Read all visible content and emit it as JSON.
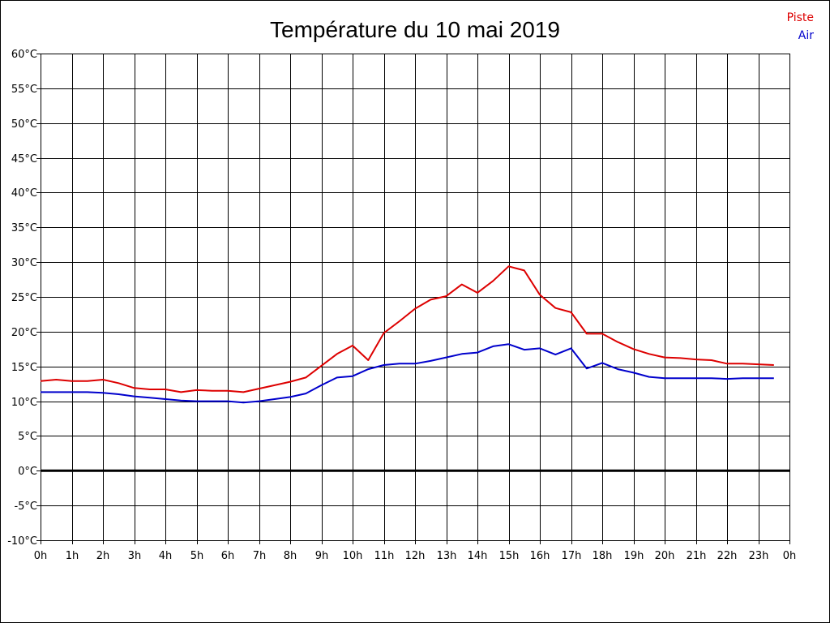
{
  "chart_data": {
    "type": "line",
    "title": "Température du 10 mai 2019",
    "xlabel": "",
    "ylabel": "",
    "x_tick_labels": [
      "0h",
      "1h",
      "2h",
      "3h",
      "4h",
      "5h",
      "6h",
      "7h",
      "8h",
      "9h",
      "10h",
      "11h",
      "12h",
      "13h",
      "14h",
      "15h",
      "16h",
      "17h",
      "18h",
      "19h",
      "20h",
      "21h",
      "22h",
      "23h",
      "0h"
    ],
    "y_tick_labels": [
      "60°C",
      "55°C",
      "50°C",
      "45°C",
      "40°C",
      "35°C",
      "30°C",
      "25°C",
      "20°C",
      "15°C",
      "10°C",
      "5°C",
      "0°C",
      "-5°C",
      "-10°C"
    ],
    "xlim": [
      0,
      24
    ],
    "ylim": [
      -10,
      60
    ],
    "grid": true,
    "legend_position": "top-right",
    "zero_line": true,
    "series": [
      {
        "name": "Piste",
        "color": "#dd0000",
        "x": [
          0,
          0.5,
          1,
          1.5,
          2,
          2.5,
          3,
          3.5,
          4,
          4.5,
          5,
          5.5,
          6,
          6.5,
          7,
          7.5,
          8,
          8.5,
          9,
          9.5,
          10,
          10.5,
          11,
          11.5,
          12,
          12.5,
          13,
          13.5,
          14,
          14.5,
          15,
          15.5,
          16,
          16.5,
          17,
          17.5,
          18,
          18.5,
          19,
          19.5,
          20,
          20.5,
          21,
          21.5,
          22,
          22.5,
          23,
          23.5
        ],
        "values": [
          12.9,
          13.1,
          12.9,
          12.9,
          13.1,
          12.6,
          11.9,
          11.7,
          11.7,
          11.3,
          11.6,
          11.5,
          11.5,
          11.3,
          11.8,
          12.3,
          12.8,
          13.4,
          15.1,
          16.8,
          18.0,
          15.9,
          19.8,
          21.5,
          23.3,
          24.6,
          25.1,
          26.8,
          25.6,
          27.3,
          29.4,
          28.8,
          25.3,
          23.4,
          22.8,
          19.7,
          19.7,
          18.5,
          17.5,
          16.8,
          16.3,
          16.2,
          16.0,
          15.9,
          15.4,
          15.4,
          15.3,
          15.2
        ]
      },
      {
        "name": "Air",
        "color": "#0000cc",
        "x": [
          0,
          0.5,
          1,
          1.5,
          2,
          2.5,
          3,
          3.5,
          4,
          4.5,
          5,
          5.5,
          6,
          6.5,
          7,
          7.5,
          8,
          8.5,
          9,
          9.5,
          10,
          10.5,
          11,
          11.5,
          12,
          12.5,
          13,
          13.5,
          14,
          14.5,
          15,
          15.5,
          16,
          16.5,
          17,
          17.5,
          18,
          18.5,
          19,
          19.5,
          20,
          20.5,
          21,
          21.5,
          22,
          22.5,
          23,
          23.5
        ],
        "values": [
          11.3,
          11.3,
          11.3,
          11.3,
          11.2,
          11.0,
          10.7,
          10.5,
          10.3,
          10.1,
          10.0,
          10.0,
          10.0,
          9.8,
          10.0,
          10.3,
          10.6,
          11.1,
          12.3,
          13.4,
          13.6,
          14.6,
          15.2,
          15.4,
          15.4,
          15.8,
          16.3,
          16.8,
          17.0,
          17.9,
          18.2,
          17.4,
          17.6,
          16.7,
          17.6,
          14.7,
          15.5,
          14.6,
          14.1,
          13.5,
          13.3,
          13.3,
          13.3,
          13.3,
          13.2,
          13.3,
          13.3,
          13.3
        ]
      }
    ]
  }
}
